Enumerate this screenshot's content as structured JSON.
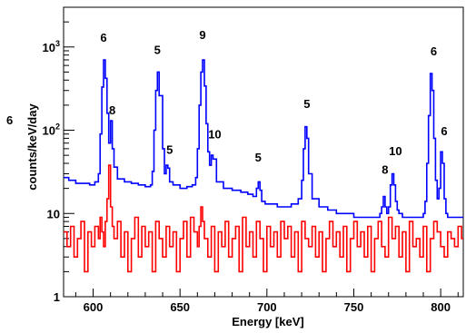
{
  "chart_data": {
    "type": "line",
    "title": "",
    "xlabel": "Energy [keV]",
    "ylabel": "counts/keV/day",
    "xlim": [
      583,
      813
    ],
    "ylim": [
      1,
      3000
    ],
    "y_scale": "log",
    "x_ticks": [
      600,
      650,
      700,
      750,
      800
    ],
    "x_tick_labels": [
      "600",
      "650",
      "700",
      "750",
      "800"
    ],
    "y_ticks": [
      1,
      10,
      100,
      1000
    ],
    "y_tick_labels": [
      "1",
      "10",
      "10²",
      "10³"
    ],
    "corner_label": "6",
    "series": [
      {
        "color": "#0000ff",
        "x": [
          583,
          586,
          590,
          594,
          598,
          601,
          603,
          604,
          605,
          606,
          607,
          608,
          609,
          610,
          611,
          612,
          614,
          618,
          622,
          626,
          630,
          633,
          634,
          635,
          636,
          637,
          638,
          640,
          641,
          642,
          643,
          644,
          646,
          650,
          654,
          657,
          659,
          660,
          661,
          662,
          663,
          664,
          665,
          666,
          667,
          668,
          669,
          671,
          675,
          680,
          685,
          689,
          692,
          694,
          695,
          696,
          697,
          699,
          702,
          706,
          710,
          714,
          718,
          720,
          721,
          722,
          723,
          724,
          726,
          730,
          735,
          740,
          745,
          750,
          755,
          760,
          763,
          765,
          766,
          767,
          768,
          769,
          770,
          771,
          772,
          773,
          774,
          775,
          776,
          778,
          781,
          785,
          788,
          790,
          791,
          792,
          793,
          794,
          795,
          796,
          797,
          798,
          799,
          800,
          801,
          802,
          803,
          804,
          806,
          809,
          813
        ],
        "y": [
          27,
          25,
          23,
          23,
          22,
          24,
          30,
          90,
          330,
          700,
          420,
          160,
          70,
          130,
          60,
          36,
          26,
          24,
          23,
          22,
          21,
          22,
          32,
          100,
          300,
          500,
          260,
          60,
          30,
          38,
          35,
          24,
          22,
          20,
          21,
          22,
          27,
          60,
          200,
          500,
          700,
          340,
          120,
          55,
          38,
          50,
          45,
          24,
          20,
          19,
          18,
          17,
          16,
          20,
          24,
          19,
          14,
          13,
          13,
          12,
          12,
          13,
          15,
          25,
          60,
          110,
          80,
          30,
          15,
          12,
          11,
          10,
          10,
          9,
          9,
          9,
          9,
          10,
          12,
          16,
          12,
          10,
          12,
          22,
          30,
          22,
          14,
          11,
          10,
          9,
          9,
          9,
          9,
          10,
          14,
          40,
          150,
          480,
          300,
          80,
          25,
          15,
          20,
          55,
          40,
          15,
          10,
          9,
          9,
          9,
          9
        ]
      },
      {
        "color": "#ff0000",
        "x": [
          583,
          585,
          587,
          589,
          591,
          593,
          595,
          597,
          599,
          601,
          603,
          604,
          605,
          606,
          607,
          608,
          609,
          610,
          611,
          612,
          614,
          616,
          618,
          620,
          622,
          624,
          626,
          628,
          630,
          632,
          634,
          636,
          638,
          640,
          642,
          644,
          646,
          648,
          650,
          652,
          654,
          656,
          658,
          660,
          661,
          662,
          663,
          664,
          666,
          668,
          670,
          672,
          674,
          676,
          678,
          680,
          682,
          684,
          686,
          688,
          690,
          692,
          694,
          696,
          698,
          700,
          702,
          704,
          706,
          708,
          710,
          712,
          714,
          716,
          718,
          720,
          722,
          724,
          726,
          728,
          730,
          732,
          734,
          736,
          738,
          740,
          742,
          744,
          746,
          748,
          750,
          752,
          754,
          756,
          758,
          760,
          762,
          764,
          766,
          768,
          770,
          772,
          774,
          776,
          778,
          780,
          782,
          784,
          786,
          788,
          790,
          792,
          794,
          796,
          798,
          800,
          802,
          804,
          806,
          808,
          810,
          812
        ],
        "y": [
          6,
          4,
          7,
          3,
          5,
          8,
          2,
          6,
          4,
          7,
          5,
          9,
          6,
          4,
          8,
          15,
          38,
          12,
          7,
          5,
          8,
          3,
          6,
          2,
          5,
          9,
          3,
          7,
          4,
          6,
          2,
          8,
          5,
          3,
          7,
          4,
          6,
          2,
          5,
          8,
          3,
          9,
          6,
          4,
          7,
          12,
          8,
          5,
          3,
          7,
          2,
          6,
          4,
          8,
          3,
          5,
          7,
          2,
          9,
          4,
          6,
          3,
          8,
          5,
          2,
          7,
          4,
          6,
          3,
          8,
          5,
          7,
          3,
          6,
          2,
          8,
          5,
          4,
          7,
          3,
          6,
          2,
          5,
          8,
          4,
          6,
          3,
          7,
          2,
          5,
          8,
          4,
          6,
          3,
          7,
          2,
          5,
          8,
          4,
          3,
          9,
          5,
          7,
          3,
          6,
          2,
          8,
          4,
          5,
          3,
          7,
          2,
          5,
          8,
          6,
          4,
          3,
          6,
          5,
          4,
          7,
          5
        ]
      }
    ],
    "annotations": [
      {
        "text": "6",
        "x": 606,
        "y": 1150
      },
      {
        "text": "8",
        "x": 611,
        "y": 155
      },
      {
        "text": "5",
        "x": 637,
        "y": 820
      },
      {
        "text": "5",
        "x": 644,
        "y": 52
      },
      {
        "text": "9",
        "x": 663,
        "y": 1250
      },
      {
        "text": "10",
        "x": 670,
        "y": 80
      },
      {
        "text": "5",
        "x": 695,
        "y": 42
      },
      {
        "text": "5",
        "x": 723,
        "y": 185
      },
      {
        "text": "8",
        "x": 768,
        "y": 30
      },
      {
        "text": "10",
        "x": 774,
        "y": 50
      },
      {
        "text": "6",
        "x": 796,
        "y": 790
      },
      {
        "text": "6",
        "x": 802,
        "y": 87
      }
    ]
  }
}
